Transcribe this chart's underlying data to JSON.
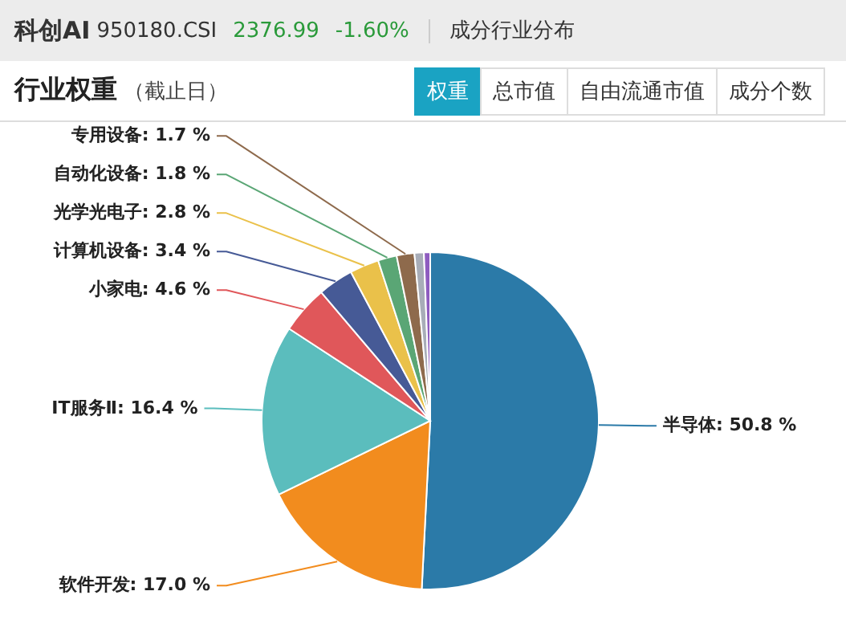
{
  "chart_data": {
    "type": "pie",
    "title": "行业权重",
    "subtitle": "（截止日）",
    "annotations": [
      "科创AI",
      "950180.CSI",
      "2376.99",
      "-1.60%",
      "成分行业分布",
      "权重",
      "总市值",
      "自由流通市值",
      "成分个数"
    ],
    "categories": [
      "半导体",
      "软件开发",
      "IT服务Ⅱ",
      "小家电",
      "计算机设备",
      "光学光电子",
      "自动化设备",
      "专用设备",
      null,
      null
    ],
    "values": [
      50.8,
      17.0,
      16.4,
      4.6,
      3.4,
      2.8,
      1.8,
      1.7,
      0.9,
      0.6
    ],
    "value_labels": [
      "50.8 %",
      "17.0 %",
      "16.4 %",
      "4.6 %",
      "3.4 %",
      "2.8 %",
      "1.8 %",
      "1.7 %",
      null,
      null
    ],
    "colors": [
      "#2b7aa8",
      "#f28c1e",
      "#5bbdbd",
      "#e0575a",
      "#465a96",
      "#eac14a",
      "#5aa675",
      "#8e6a4c",
      "#a8adb8",
      "#8e5cc0"
    ]
  }
}
